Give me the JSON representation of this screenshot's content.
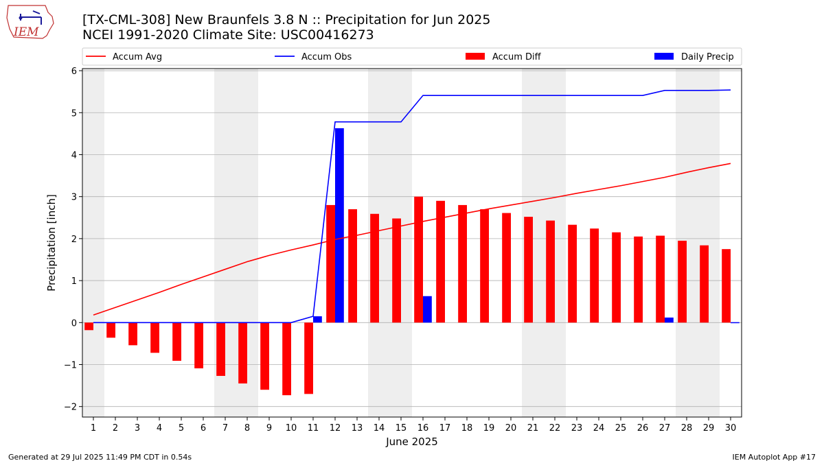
{
  "header": {
    "title_line1": "[TX-CML-308] New Braunfels 3.8 N :: Precipitation for Jun 2025",
    "title_line2": "NCEI 1991-2020 Climate Site: USC00416273",
    "logo_text": "IEM"
  },
  "footer": {
    "generated": "Generated at 29 Jul 2025 11:49 PM CDT in 0.54s",
    "app": "IEM Autoplot App #17"
  },
  "chart_data": {
    "type": "bar",
    "xlabel": "June 2025",
    "ylabel": "Precipitation [inch]",
    "xlim": [
      0.5,
      30.5
    ],
    "ylim": [
      -2.25,
      6.05
    ],
    "yticks": [
      -2,
      -1,
      0,
      1,
      2,
      3,
      4,
      5,
      6
    ],
    "ytick_labels": [
      "−2",
      "−1",
      "0",
      "1",
      "2",
      "3",
      "4",
      "5",
      "6"
    ],
    "grid": "horizontal",
    "legend_placement": "top",
    "weekend_shading_days": [
      1,
      7,
      8,
      14,
      15,
      21,
      22,
      28,
      29
    ],
    "days": [
      1,
      2,
      3,
      4,
      5,
      6,
      7,
      8,
      9,
      10,
      11,
      12,
      13,
      14,
      15,
      16,
      17,
      18,
      19,
      20,
      21,
      22,
      23,
      24,
      25,
      26,
      27,
      28,
      29,
      30
    ],
    "series": [
      {
        "name": "Accum Avg",
        "kind": "line",
        "color": "#ff0000",
        "values": [
          0.18,
          0.36,
          0.54,
          0.72,
          0.91,
          1.09,
          1.27,
          1.45,
          1.6,
          1.73,
          1.85,
          1.98,
          2.08,
          2.19,
          2.3,
          2.41,
          2.51,
          2.61,
          2.71,
          2.8,
          2.89,
          2.98,
          3.08,
          3.17,
          3.26,
          3.36,
          3.46,
          3.58,
          3.69,
          3.79
        ]
      },
      {
        "name": "Accum Obs",
        "kind": "line",
        "color": "#0000ff",
        "values": [
          0,
          0,
          0,
          0,
          0,
          0,
          0,
          0,
          0,
          0,
          0.15,
          4.78,
          4.78,
          4.78,
          4.78,
          5.41,
          5.41,
          5.41,
          5.41,
          5.41,
          5.41,
          5.41,
          5.41,
          5.41,
          5.41,
          5.41,
          5.53,
          5.53,
          5.53,
          5.54
        ]
      },
      {
        "name": "Accum Diff",
        "kind": "bar",
        "color": "#ff0000",
        "values": [
          -0.18,
          -0.36,
          -0.54,
          -0.72,
          -0.91,
          -1.09,
          -1.27,
          -1.45,
          -1.6,
          -1.73,
          -1.7,
          2.8,
          2.7,
          2.59,
          2.48,
          3.0,
          2.9,
          2.8,
          2.7,
          2.61,
          2.52,
          2.43,
          2.33,
          2.24,
          2.15,
          2.05,
          2.07,
          1.95,
          1.84,
          1.75
        ]
      },
      {
        "name": "Daily Precip",
        "kind": "bar",
        "color": "#0000ff",
        "values": [
          0,
          0,
          0,
          0,
          0,
          0,
          0,
          0,
          0,
          0,
          0.15,
          4.63,
          0,
          0,
          0,
          0.63,
          0,
          0,
          0,
          0,
          0,
          0,
          0,
          0,
          0,
          0,
          0.12,
          0,
          0,
          0.01
        ]
      }
    ]
  }
}
